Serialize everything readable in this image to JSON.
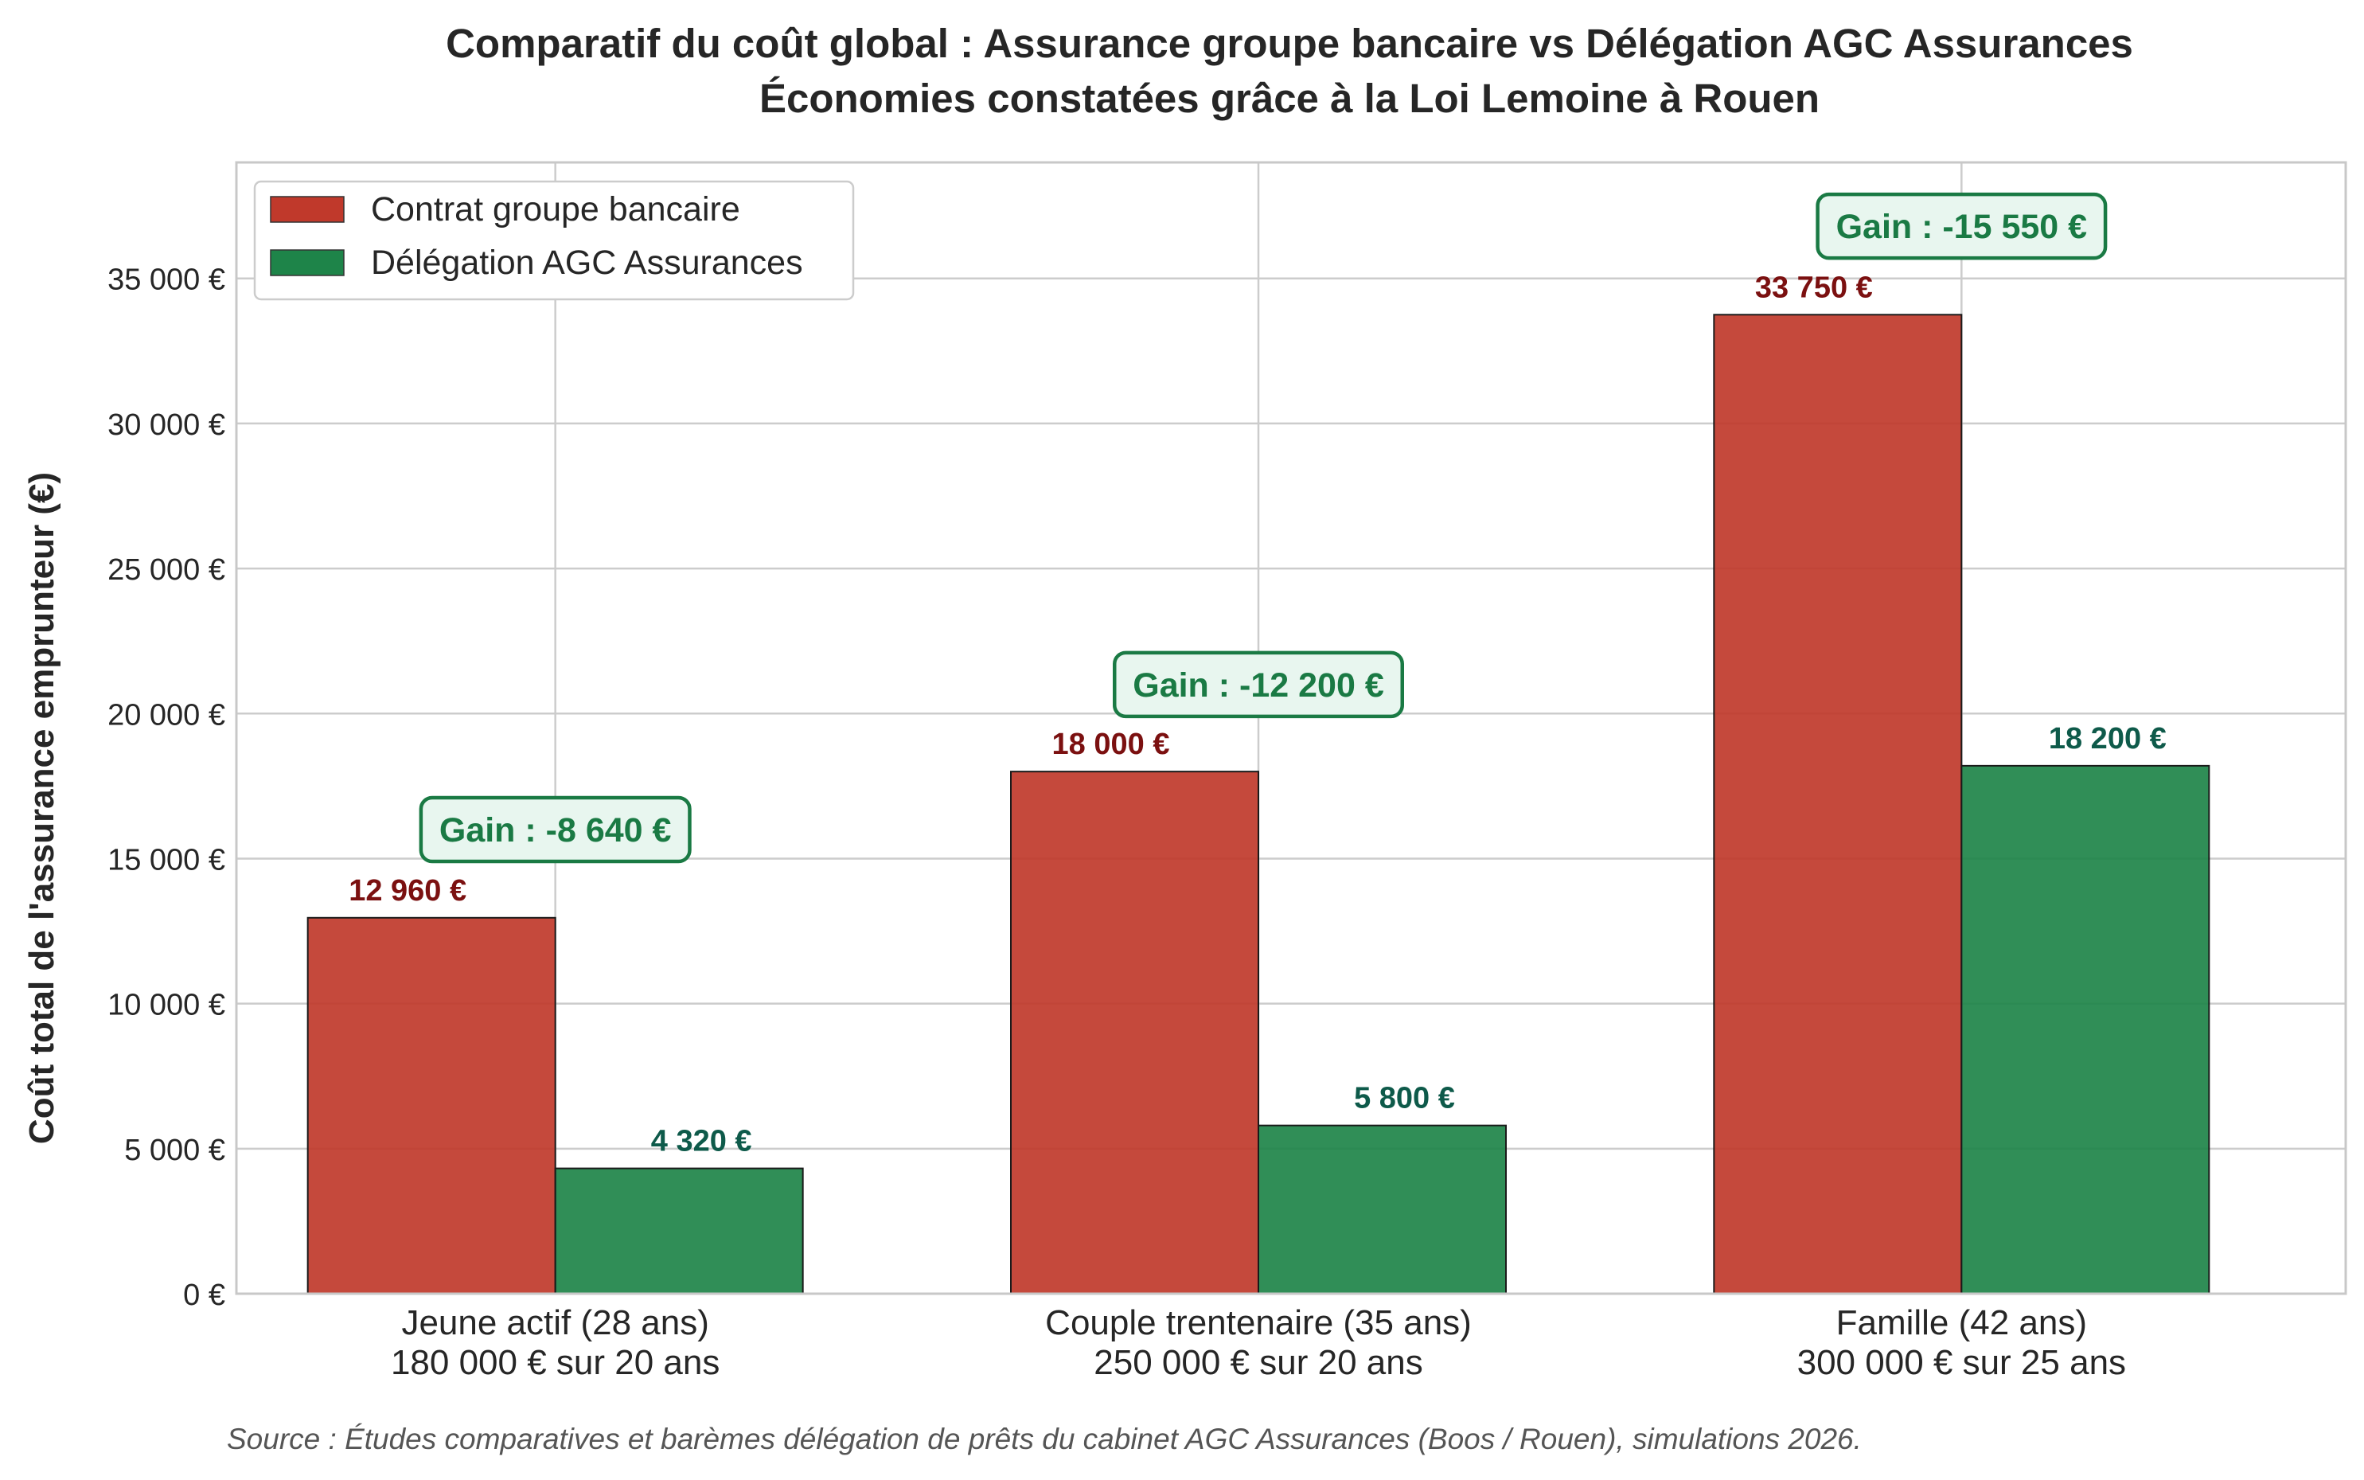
{
  "chart_data": {
    "type": "bar",
    "title": "Comparatif du coût global : Assurance groupe bancaire vs Délégation AGC Assurances",
    "subtitle": "Économies constatées grâce à la Loi Lemoine à Rouen",
    "ylabel": "Coût total de l'assurance emprunteur (€)",
    "xlabel": "",
    "ylim": [
      0,
      39000
    ],
    "yticks": [
      0,
      5000,
      10000,
      15000,
      20000,
      25000,
      30000,
      35000
    ],
    "ytick_labels": [
      "0 €",
      "5 000 €",
      "10 000 €",
      "15 000 €",
      "20 000 €",
      "25 000 €",
      "30 000 €",
      "35 000 €"
    ],
    "grid": true,
    "legend_position": "top-left",
    "categories": [
      {
        "line1": "Jeune actif (28 ans)",
        "line2": "180 000 € sur 20 ans"
      },
      {
        "line1": "Couple trentenaire (35 ans)",
        "line2": "250 000 € sur 20 ans"
      },
      {
        "line1": "Famille (42 ans)",
        "line2": "300 000 € sur 25 ans"
      }
    ],
    "series": [
      {
        "name": "Contrat groupe bancaire",
        "color": "#c0392b",
        "label_color": "#7b1010",
        "values": [
          12960,
          18000,
          33750
        ],
        "value_labels": [
          "12 960 €",
          "18 000 €",
          "33 750 €"
        ]
      },
      {
        "name": "Délégation AGC Assurances",
        "color": "#1e8449",
        "label_color": "#0e5a4a",
        "values": [
          4320,
          5800,
          18200
        ],
        "value_labels": [
          "4 320 €",
          "5 800 €",
          "18 200 €"
        ]
      }
    ],
    "annotations": [
      {
        "category": 0,
        "y": 16000,
        "text": "Gain : -8 640 €"
      },
      {
        "category": 1,
        "y": 21000,
        "text": "Gain : -12 200 €"
      },
      {
        "category": 2,
        "y": 36800,
        "text": "Gain : -15 550 €"
      }
    ],
    "annotation_color": "#1a7a44",
    "annotation_fill": "#e8f6ef",
    "source": "Source : Études comparatives et barèmes délégation de prêts du cabinet AGC Assurances (Boos / Rouen), simulations 2026."
  }
}
